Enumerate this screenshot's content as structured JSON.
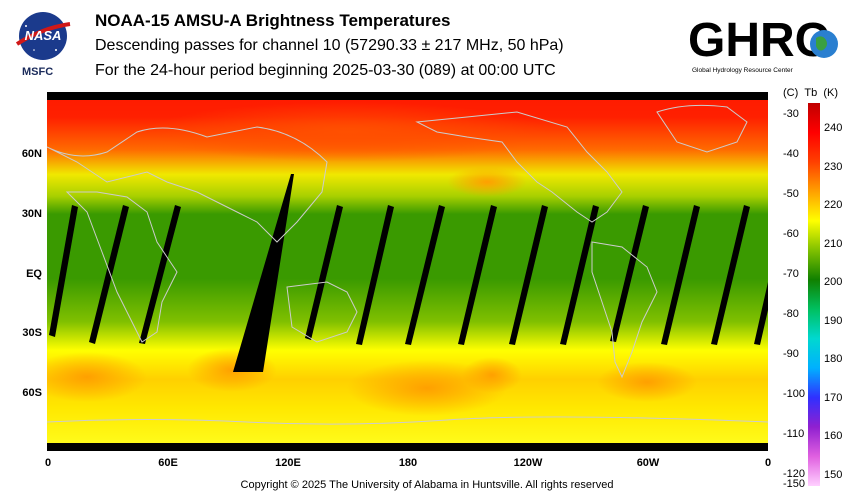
{
  "logos": {
    "nasa": "NASA",
    "center": "MSFC",
    "ghrc": "GHRC",
    "ghrc_tagline": "Global Hydrology Resource Center"
  },
  "title": {
    "line1": "NOAA-15 AMSU-A Brightness Temperatures",
    "line2": "Descending passes for channel 10 (57290.33 ± 217 MHz, 50 hPa)",
    "line3": "For the 24-hour period beginning 2025-03-30 (089) at 00:00 UTC"
  },
  "map": {
    "lat_ticks": [
      "60N",
      "30N",
      "EQ",
      "30S",
      "60S"
    ],
    "lon_ticks": [
      "0",
      "60E",
      "120E",
      "180",
      "120W",
      "60W",
      "0"
    ]
  },
  "colorbar": {
    "header_c": "(C)",
    "header_tb": "Tb",
    "header_k": "(K)",
    "celsius": [
      "-30",
      "-40",
      "-50",
      "-60",
      "-70",
      "-80",
      "-90",
      "-100",
      "-110",
      "-120",
      "-150"
    ],
    "kelvin": [
      "240",
      "230",
      "220",
      "210",
      "200",
      "190",
      "180",
      "170",
      "160",
      "150"
    ],
    "colors": [
      "#ffd0ff",
      "#e060e0",
      "#9020d0",
      "#3030ff",
      "#00b0ff",
      "#00d8d0",
      "#00c060",
      "#108000",
      "#80c000",
      "#ffff00",
      "#ffa000",
      "#ff4000",
      "#ff0000",
      "#c00000"
    ]
  },
  "footer": {
    "copyright": "Copyright © 2025 The University of Alabama in Huntsville.  All rights reserved"
  }
}
